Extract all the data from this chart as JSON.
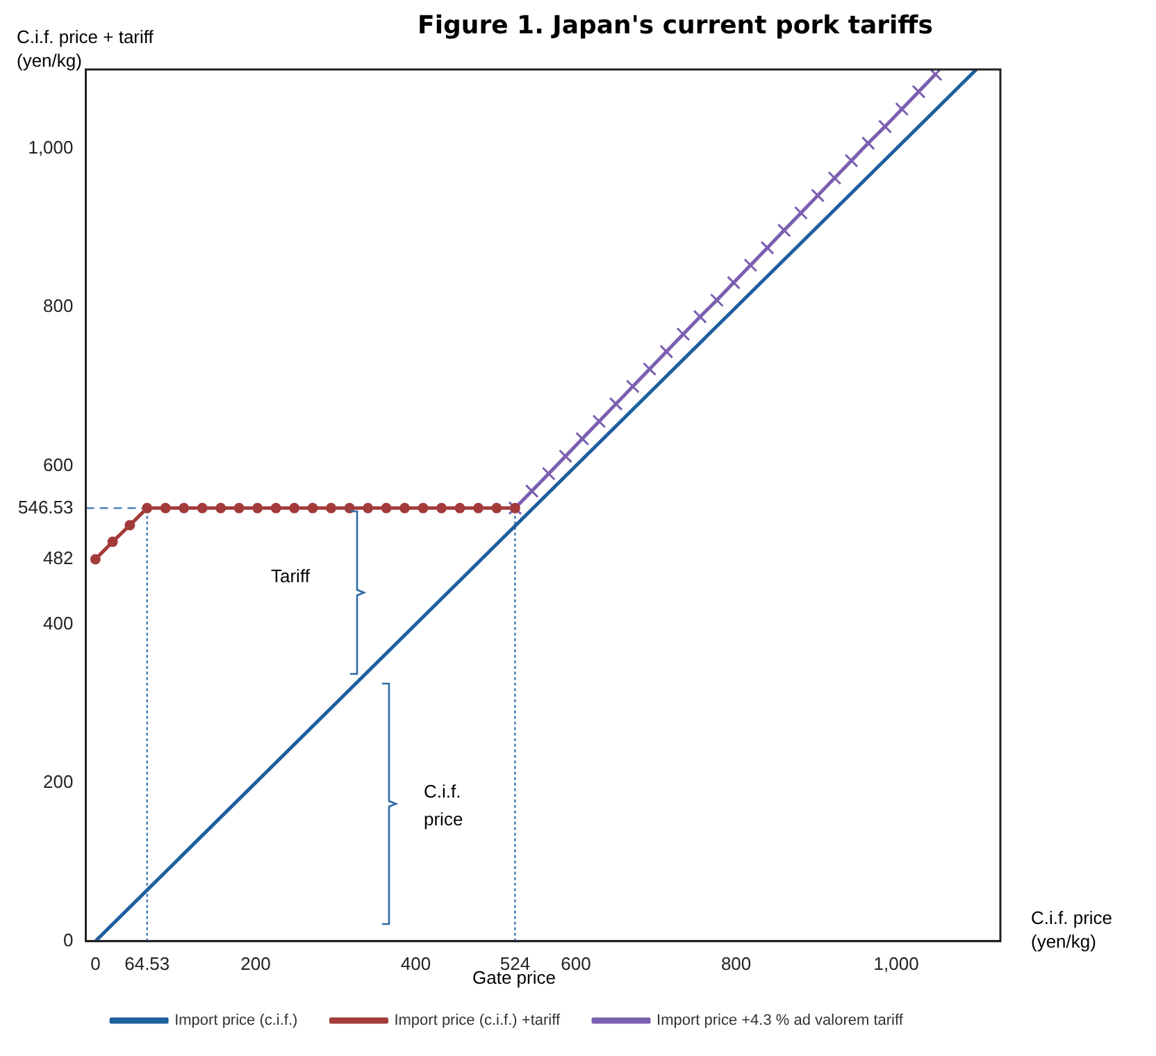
{
  "chart_data": {
    "type": "line",
    "title": "Figure 1.  Japan's current pork tariffs",
    "xlabel": "C.i.f. price (yen/kg)",
    "ylabel": "C.i.f. price + tariff (yen/kg)",
    "xlim": [
      -12,
      1130
    ],
    "ylim": [
      0,
      1100
    ],
    "xticks": [
      0,
      64.53,
      200,
      400,
      524,
      600,
      800,
      {
        "value": 1000,
        "label": "1,000"
      }
    ],
    "yticks": [
      0,
      200,
      400,
      482,
      546.53,
      600,
      800,
      {
        "value": 1000,
        "label": "1,000"
      }
    ],
    "grid": false,
    "legend": "bottom",
    "series": [
      {
        "name": "Import price (c.i.f.)",
        "color": "#1f5f9e",
        "marker": "none",
        "x": [
          0,
          1100
        ],
        "values": [
          0,
          1100
        ]
      },
      {
        "name": "Import price (c.i.f.) +tariff",
        "color": "#a33b3b",
        "marker": "circle",
        "x": [
          0,
          21.5,
          43,
          64.53,
          87.5,
          110.5,
          133.5,
          156.5,
          179.4,
          202.4,
          225.4,
          248.4,
          271.3,
          294.3,
          317.3,
          340.3,
          363.2,
          386.2,
          409.2,
          432.2,
          455.1,
          478.1,
          501,
          524
        ],
        "values": [
          482,
          504,
          525,
          546.53,
          546.53,
          546.53,
          546.53,
          546.53,
          546.53,
          546.53,
          546.53,
          546.53,
          546.53,
          546.53,
          546.53,
          546.53,
          546.53,
          546.53,
          546.53,
          546.53,
          546.53,
          546.53,
          546.53,
          546.53
        ]
      },
      {
        "name": "Import price +4.3 % ad valorem tariff",
        "color": "#7b5fb0",
        "marker": "cross",
        "x": [
          524,
          545,
          566,
          587,
          608,
          629,
          650,
          671,
          692,
          713,
          734,
          755,
          776,
          797,
          818,
          839,
          860,
          881,
          902,
          923,
          944,
          965,
          986,
          1007,
          1028,
          1049
        ],
        "values": [
          546.53,
          568,
          590,
          612,
          634,
          656,
          678,
          700,
          722,
          744,
          766,
          788,
          809,
          831,
          853,
          875,
          897,
          919,
          941,
          963,
          985,
          1007,
          1028,
          1050,
          1072,
          1094
        ]
      },
      {
        "color": "#3a78b5",
        "marker": "none",
        "line_style": "dashed",
        "x": [
          -12,
          64.53
        ],
        "values": [
          546.53,
          546.53
        ]
      },
      {
        "color": "#3a78b5",
        "marker": "none",
        "line_style": "dotted",
        "x": [
          64.53,
          64.53
        ],
        "values": [
          0,
          546.53
        ]
      },
      {
        "color": "#3a78b5",
        "marker": "none",
        "line_style": "dotted",
        "x": [
          524,
          524
        ],
        "values": [
          0,
          546.53
        ]
      }
    ],
    "annotations": [
      "Tariff",
      "C.i.f. price",
      "Gate price"
    ]
  }
}
